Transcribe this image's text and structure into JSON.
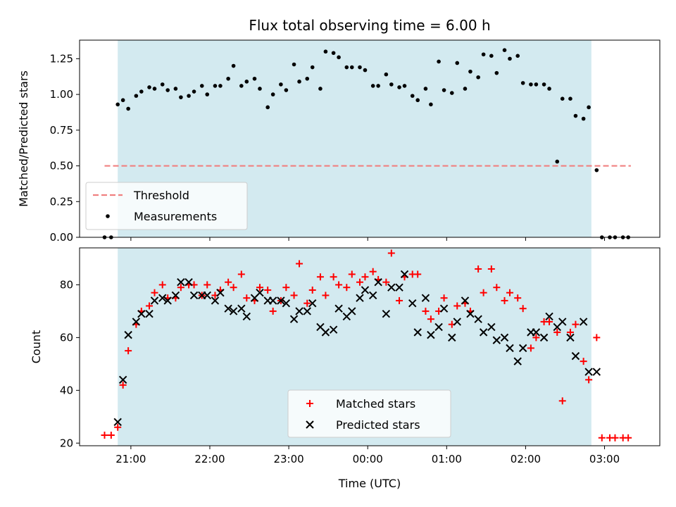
{
  "title": "Flux total observing time = 6.00 h",
  "colors": {
    "observing_band": "#d3eaf0",
    "threshold": "#f08080",
    "measurement": "#000000",
    "matched": "#ff0000",
    "predicted": "#000000"
  },
  "chart_data": [
    {
      "type": "scatter",
      "panel": "top",
      "ylabel": "Matched/Predicted stars",
      "xlabel": "",
      "xlim": [
        20.35,
        3.7
      ],
      "ylim": [
        0.0,
        1.38
      ],
      "yticks": [
        0.0,
        0.25,
        0.5,
        0.75,
        1.0,
        1.25
      ],
      "ytick_labels": [
        "0.00",
        "0.25",
        "0.50",
        "0.75",
        "1.00",
        "1.25"
      ],
      "grid": false,
      "legend_position": "lower-left",
      "shaded_span": [
        "20:50",
        "02:50"
      ],
      "threshold": {
        "name": "Threshold",
        "y": 0.5,
        "x_range": [
          "20:40",
          "03:20"
        ]
      },
      "series": [
        {
          "name": "Measurements",
          "x": [
            "20:40",
            "20:45",
            "20:50",
            "20:54",
            "20:58",
            "21:04",
            "21:08",
            "21:14",
            "21:18",
            "21:24",
            "21:28",
            "21:34",
            "21:38",
            "21:44",
            "21:48",
            "21:54",
            "21:58",
            "22:04",
            "22:08",
            "22:14",
            "22:18",
            "22:24",
            "22:28",
            "22:34",
            "22:38",
            "22:44",
            "22:48",
            "22:54",
            "22:58",
            "23:04",
            "23:08",
            "23:14",
            "23:18",
            "23:24",
            "23:28",
            "23:34",
            "23:38",
            "23:44",
            "23:48",
            "23:54",
            "23:58",
            "00:04",
            "00:08",
            "00:14",
            "00:18",
            "00:24",
            "00:28",
            "00:34",
            "00:38",
            "00:44",
            "00:48",
            "00:54",
            "00:58",
            "01:04",
            "01:08",
            "01:14",
            "01:18",
            "01:24",
            "01:28",
            "01:34",
            "01:38",
            "01:44",
            "01:48",
            "01:54",
            "01:58",
            "02:04",
            "02:08",
            "02:14",
            "02:18",
            "02:24",
            "02:28",
            "02:34",
            "02:38",
            "02:44",
            "02:48",
            "02:54",
            "02:58",
            "03:04",
            "03:08",
            "03:14",
            "03:18"
          ],
          "y": [
            0.0,
            0.0,
            0.93,
            0.96,
            0.9,
            0.99,
            1.02,
            1.05,
            1.04,
            1.07,
            1.03,
            1.04,
            0.98,
            0.99,
            1.02,
            1.06,
            1.0,
            1.06,
            1.06,
            1.11,
            1.2,
            1.06,
            1.09,
            1.11,
            1.04,
            0.91,
            1.0,
            1.07,
            1.03,
            1.21,
            1.09,
            1.11,
            1.19,
            1.04,
            1.3,
            1.29,
            1.26,
            1.19,
            1.19,
            1.19,
            1.17,
            1.06,
            1.06,
            1.14,
            1.07,
            1.05,
            1.06,
            0.99,
            0.96,
            1.04,
            0.93,
            1.23,
            1.03,
            1.01,
            1.22,
            1.04,
            1.16,
            1.12,
            1.28,
            1.27,
            1.15,
            1.31,
            1.25,
            1.27,
            1.08,
            1.07,
            1.07,
            1.07,
            1.04,
            0.53,
            0.97,
            0.97,
            0.85,
            0.83,
            0.91,
            0.47,
            0.0,
            0.0,
            0.0,
            0.0,
            0.0
          ]
        }
      ]
    },
    {
      "type": "scatter",
      "panel": "bottom",
      "xlabel": "Time (UTC)",
      "ylabel": "Count",
      "xlim": [
        20.35,
        3.7
      ],
      "ylim": [
        19,
        94
      ],
      "yticks": [
        20,
        40,
        60,
        80
      ],
      "ytick_labels": [
        "20",
        "40",
        "60",
        "80"
      ],
      "xticks": [
        "21:00",
        "22:00",
        "23:00",
        "00:00",
        "01:00",
        "02:00",
        "03:00"
      ],
      "grid": false,
      "legend_position": "lower-center",
      "shaded_span": [
        "20:50",
        "02:50"
      ],
      "series": [
        {
          "name": "Matched stars",
          "marker": "plus",
          "x": [
            "20:40",
            "20:45",
            "20:50",
            "20:54",
            "20:58",
            "21:04",
            "21:08",
            "21:14",
            "21:18",
            "21:24",
            "21:28",
            "21:34",
            "21:38",
            "21:44",
            "21:48",
            "21:54",
            "21:58",
            "22:04",
            "22:08",
            "22:14",
            "22:18",
            "22:24",
            "22:28",
            "22:34",
            "22:38",
            "22:44",
            "22:48",
            "22:54",
            "22:58",
            "23:04",
            "23:08",
            "23:14",
            "23:18",
            "23:24",
            "23:28",
            "23:34",
            "23:38",
            "23:44",
            "23:48",
            "23:54",
            "23:58",
            "00:04",
            "00:08",
            "00:14",
            "00:18",
            "00:24",
            "00:28",
            "00:34",
            "00:38",
            "00:44",
            "00:48",
            "00:54",
            "00:58",
            "01:04",
            "01:08",
            "01:14",
            "01:18",
            "01:24",
            "01:28",
            "01:34",
            "01:38",
            "01:44",
            "01:48",
            "01:54",
            "01:58",
            "02:04",
            "02:08",
            "02:14",
            "02:18",
            "02:24",
            "02:28",
            "02:34",
            "02:38",
            "02:44",
            "02:48",
            "02:54",
            "02:58",
            "03:04",
            "03:08",
            "03:14",
            "03:18"
          ],
          "y": [
            23,
            23,
            26,
            42,
            55,
            65,
            70,
            72,
            77,
            80,
            75,
            75,
            79,
            80,
            80,
            76,
            80,
            76,
            78,
            81,
            79,
            84,
            75,
            74,
            79,
            78,
            70,
            74,
            79,
            76,
            88,
            73,
            78,
            83,
            76,
            83,
            80,
            79,
            84,
            81,
            83,
            85,
            82,
            81,
            92,
            74,
            83,
            84,
            84,
            70,
            67,
            70,
            75,
            65,
            72,
            73,
            70,
            86,
            77,
            86,
            79,
            74,
            77,
            75,
            71,
            56,
            60,
            66,
            66,
            62,
            36,
            62,
            65,
            51,
            44,
            60,
            22,
            22,
            22,
            22,
            22
          ]
        },
        {
          "name": "Predicted stars",
          "marker": "x",
          "x": [
            "20:50",
            "20:54",
            "20:58",
            "21:04",
            "21:08",
            "21:14",
            "21:18",
            "21:24",
            "21:28",
            "21:34",
            "21:38",
            "21:44",
            "21:48",
            "21:54",
            "21:58",
            "22:04",
            "22:08",
            "22:14",
            "22:18",
            "22:24",
            "22:28",
            "22:34",
            "22:38",
            "22:44",
            "22:48",
            "22:54",
            "22:58",
            "23:04",
            "23:08",
            "23:14",
            "23:18",
            "23:24",
            "23:28",
            "23:34",
            "23:38",
            "23:44",
            "23:48",
            "23:54",
            "23:58",
            "00:04",
            "00:08",
            "00:14",
            "00:18",
            "00:24",
            "00:28",
            "00:34",
            "00:38",
            "00:44",
            "00:48",
            "00:54",
            "00:58",
            "01:04",
            "01:08",
            "01:14",
            "01:18",
            "01:24",
            "01:28",
            "01:34",
            "01:38",
            "01:44",
            "01:48",
            "01:54",
            "01:58",
            "02:04",
            "02:08",
            "02:14",
            "02:18",
            "02:24",
            "02:28",
            "02:34",
            "02:38",
            "02:44",
            "02:48",
            "02:54"
          ],
          "y": [
            28,
            44,
            61,
            66,
            69,
            69,
            74,
            75,
            74,
            76,
            81,
            81,
            76,
            76,
            76,
            74,
            77,
            71,
            70,
            71,
            68,
            75,
            77,
            74,
            74,
            74,
            73,
            67,
            70,
            70,
            73,
            64,
            62,
            63,
            71,
            68,
            70,
            75,
            78,
            76,
            81,
            69,
            79,
            79,
            84,
            73,
            62,
            75,
            61,
            64,
            71,
            60,
            66,
            74,
            69,
            67,
            62,
            64,
            59,
            60,
            56,
            51,
            56,
            62,
            62,
            60,
            68,
            64,
            66,
            60,
            53,
            66,
            47,
            47
          ]
        }
      ]
    }
  ]
}
